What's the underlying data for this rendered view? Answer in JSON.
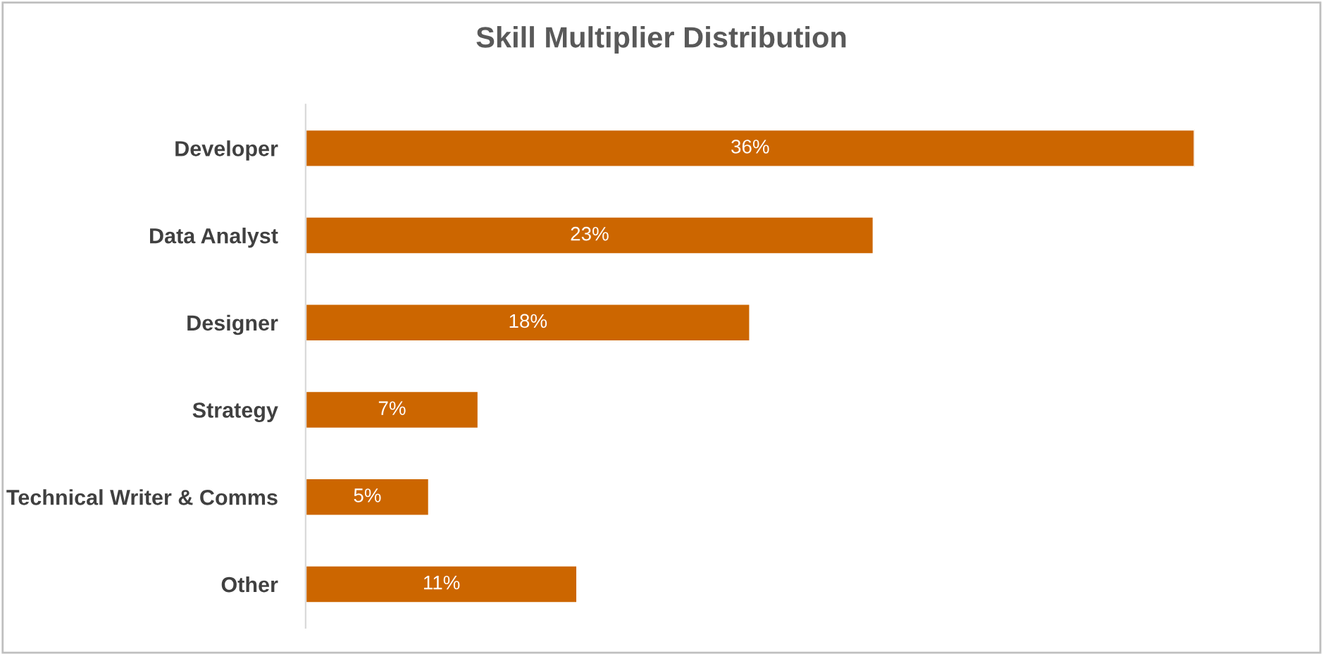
{
  "chart_data": {
    "type": "bar",
    "orientation": "horizontal",
    "title": "Skill Multiplier Distribution",
    "categories": [
      "Developer",
      "Data Analyst",
      "Designer",
      "Strategy",
      "Technical Writer & Comms",
      "Other"
    ],
    "values": [
      36,
      23,
      18,
      7,
      5,
      11
    ],
    "value_labels": [
      "36%",
      "23%",
      "18%",
      "7%",
      "5%",
      "11%"
    ],
    "color": "#cc6600",
    "grid": false,
    "legend": false
  }
}
